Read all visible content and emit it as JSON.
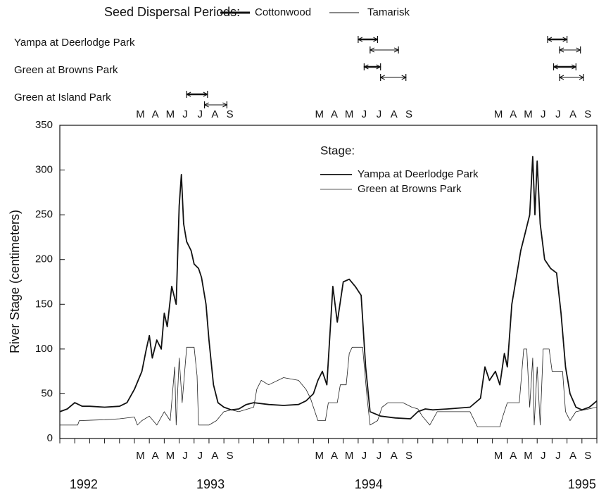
{
  "chart_data": {
    "type": "line",
    "y_label": "River Stage (centimeters)",
    "xlim": [
      0,
      36
    ],
    "ylim": [
      0,
      350
    ],
    "yticks": [
      0,
      50,
      100,
      150,
      200,
      250,
      300,
      350
    ],
    "xticks": [
      0,
      1,
      2,
      3,
      4,
      5,
      6,
      7,
      8,
      9,
      10,
      11,
      12,
      13,
      14,
      15,
      16,
      17,
      18,
      19,
      20,
      21,
      22,
      23,
      24,
      25,
      26,
      27,
      28,
      29,
      30,
      31,
      32,
      33,
      34,
      35,
      36
    ],
    "month_ticks": [
      {
        "value": 5.4,
        "label": "M"
      },
      {
        "value": 6.4,
        "label": "A"
      },
      {
        "value": 7.4,
        "label": "M"
      },
      {
        "value": 8.4,
        "label": "J"
      },
      {
        "value": 9.4,
        "label": "J"
      },
      {
        "value": 10.4,
        "label": "A"
      },
      {
        "value": 11.4,
        "label": "S"
      },
      {
        "value": 17.4,
        "label": "M"
      },
      {
        "value": 18.4,
        "label": "A"
      },
      {
        "value": 19.4,
        "label": "M"
      },
      {
        "value": 20.4,
        "label": "J"
      },
      {
        "value": 21.4,
        "label": "J"
      },
      {
        "value": 22.4,
        "label": "A"
      },
      {
        "value": 23.4,
        "label": "S"
      },
      {
        "value": 29.4,
        "label": "M"
      },
      {
        "value": 30.4,
        "label": "A"
      },
      {
        "value": 31.4,
        "label": "M"
      },
      {
        "value": 32.4,
        "label": "J"
      },
      {
        "value": 33.4,
        "label": "J"
      },
      {
        "value": 34.4,
        "label": "A"
      },
      {
        "value": 35.4,
        "label": "S"
      }
    ],
    "year_ticks": [
      {
        "value": 1.6,
        "label": "1992"
      },
      {
        "value": 10.1,
        "label": "1993"
      },
      {
        "value": 20.7,
        "label": "1994"
      },
      {
        "value": 35,
        "label": "1995"
      }
    ],
    "legend_title": "Stage:",
    "series": [
      {
        "name": "Yampa at Deerlodge Park",
        "color": "#111111",
        "width": 1.8,
        "x": [
          0,
          0.5,
          1,
          1.5,
          2,
          3,
          4,
          4.5,
          5,
          5.5,
          5.8,
          6,
          6.2,
          6.5,
          6.8,
          7,
          7.2,
          7.5,
          7.8,
          8,
          8.15,
          8.3,
          8.5,
          8.8,
          9,
          9.3,
          9.5,
          9.8,
          10,
          10.3,
          10.6,
          11,
          11.5,
          12,
          12.5,
          13,
          14,
          15,
          16,
          16.5,
          17,
          17.3,
          17.6,
          17.9,
          18.3,
          18.6,
          19,
          19.4,
          19.8,
          20.2,
          20.5,
          20.8,
          21.5,
          22.5,
          23.5,
          24,
          24.5,
          25,
          26,
          27.5,
          28.2,
          28.5,
          28.8,
          29.2,
          29.5,
          29.8,
          30,
          30.3,
          30.6,
          30.9,
          31.2,
          31.5,
          31.7,
          31.85,
          32,
          32.2,
          32.5,
          32.9,
          33.3,
          33.6,
          33.9,
          34.2,
          34.6,
          35,
          35.5,
          36
        ],
        "values": [
          30,
          33,
          40,
          36,
          36,
          35,
          36,
          40,
          55,
          75,
          100,
          115,
          90,
          110,
          100,
          140,
          125,
          170,
          150,
          260,
          295,
          240,
          220,
          210,
          195,
          190,
          180,
          150,
          110,
          60,
          40,
          35,
          32,
          33,
          38,
          40,
          38,
          37,
          38,
          42,
          50,
          65,
          75,
          60,
          170,
          130,
          175,
          178,
          170,
          160,
          80,
          30,
          25,
          23,
          22,
          30,
          33,
          32,
          33,
          35,
          45,
          80,
          65,
          75,
          60,
          95,
          80,
          150,
          180,
          210,
          230,
          250,
          315,
          250,
          310,
          240,
          200,
          190,
          185,
          140,
          80,
          50,
          35,
          32,
          35,
          42
        ]
      },
      {
        "name": "Green at Browns Park",
        "color": "#222222",
        "width": 0.8,
        "x": [
          0,
          1.2,
          1.3,
          3,
          4,
          5,
          5.2,
          5.5,
          6,
          6.5,
          7,
          7.4,
          7.7,
          7.8,
          8,
          8.2,
          8.5,
          9,
          9.2,
          9.3,
          10,
          10.5,
          11,
          11.5,
          12,
          13,
          13.2,
          13.5,
          14,
          15,
          16,
          16.5,
          16.8,
          17,
          17.3,
          17.8,
          18,
          18.6,
          18.8,
          19.2,
          19.4,
          19.6,
          20.3,
          20.6,
          20.8,
          21.3,
          21.6,
          22,
          23,
          23.6,
          24,
          24.3,
          24.8,
          25.3,
          27.5,
          28,
          29.5,
          29.7,
          30,
          30.8,
          31.1,
          31.3,
          31.5,
          31.7,
          31.8,
          32,
          32.2,
          32.4,
          32.8,
          33,
          33.7,
          33.9,
          34.2,
          34.6,
          36
        ],
        "values": [
          15,
          15,
          20,
          21,
          22,
          24,
          15,
          20,
          25,
          15,
          30,
          20,
          80,
          15,
          90,
          40,
          102,
          102,
          70,
          15,
          15,
          20,
          30,
          32,
          30,
          35,
          55,
          65,
          60,
          68,
          65,
          55,
          45,
          35,
          20,
          20,
          40,
          40,
          60,
          60,
          95,
          102,
          102,
          45,
          15,
          20,
          35,
          40,
          40,
          35,
          33,
          25,
          15,
          30,
          30,
          13,
          13,
          25,
          40,
          40,
          100,
          100,
          35,
          90,
          15,
          80,
          15,
          100,
          100,
          75,
          75,
          30,
          20,
          30,
          35
        ]
      }
    ],
    "dispersal": {
      "title": "Seed Dispersal Periods:",
      "cottonwood_name": "Cottonwood",
      "tamarisk_name": "Tamarisk",
      "sites": [
        {
          "name": "Yampa at Deerlodge Park",
          "cottonwood": [
            [
              20.0,
              21.3
            ],
            [
              32.7,
              34.0
            ]
          ],
          "tamarisk": [
            [
              20.8,
              22.7
            ],
            [
              33.5,
              34.9
            ]
          ]
        },
        {
          "name": "Green at Browns Park",
          "cottonwood": [
            [
              20.4,
              21.5
            ],
            [
              33.1,
              34.6
            ]
          ],
          "tamarisk": [
            [
              21.5,
              23.2
            ],
            [
              33.5,
              35.1
            ]
          ]
        },
        {
          "name": "Green at Island Park",
          "cottonwood": [
            [
              8.5,
              9.9
            ]
          ],
          "tamarisk": [
            [
              9.7,
              11.2
            ]
          ]
        }
      ]
    }
  }
}
